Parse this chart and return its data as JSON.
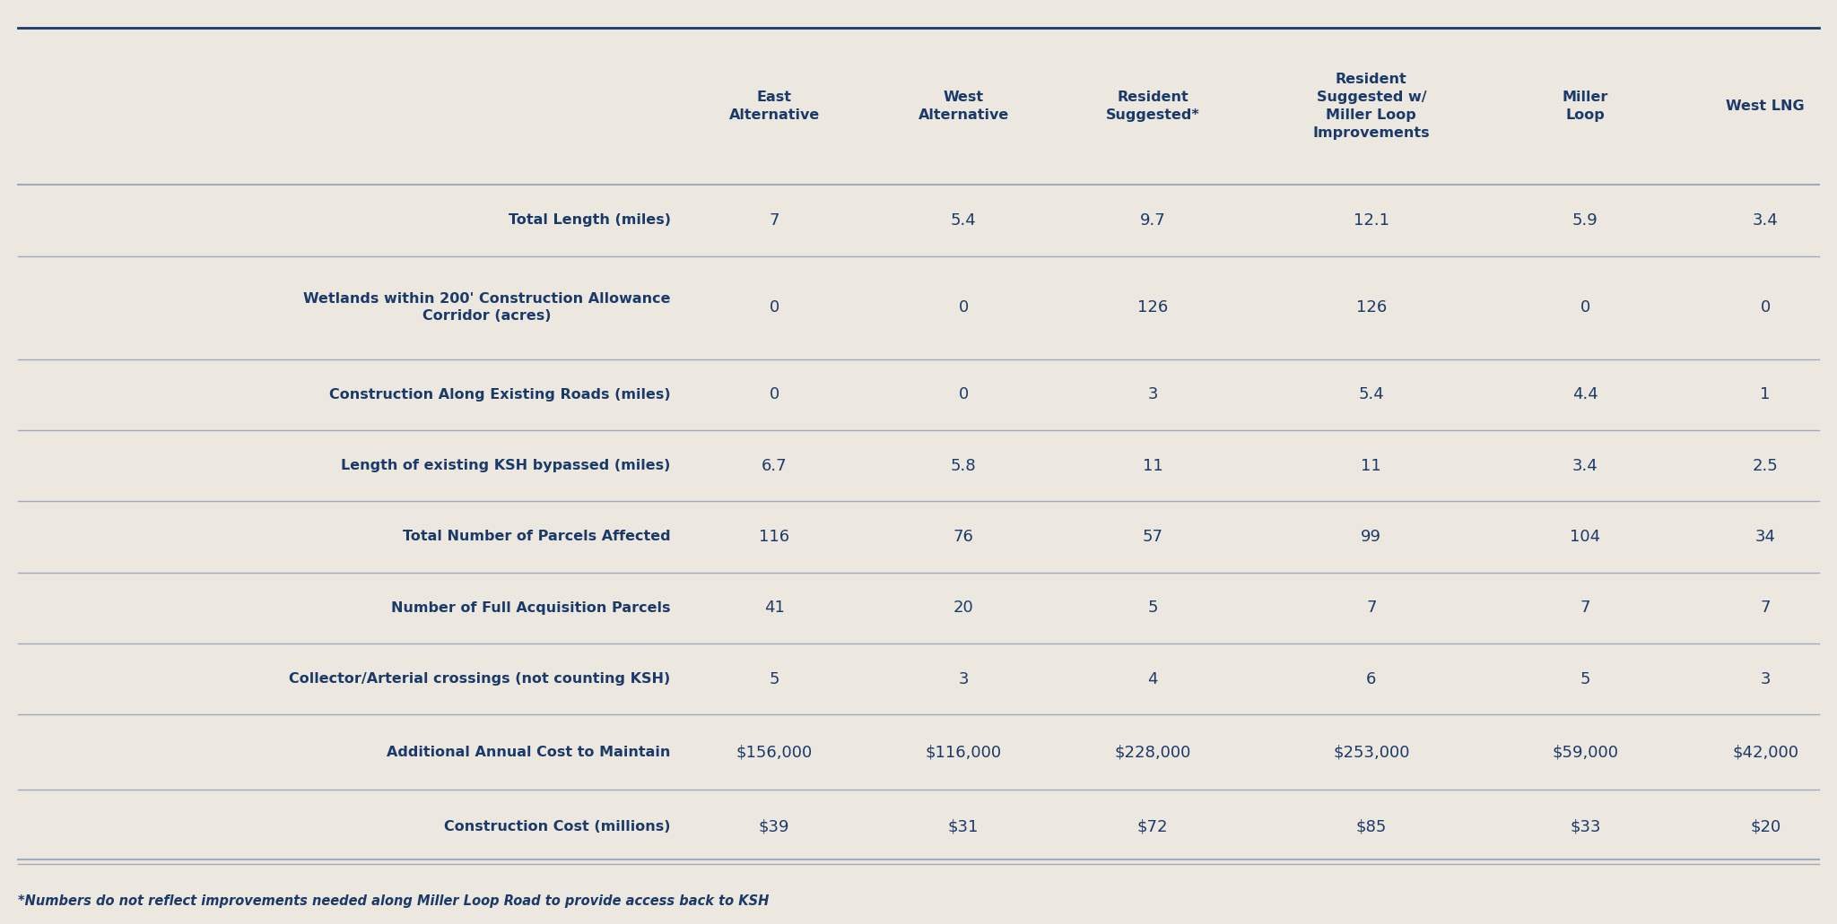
{
  "background_color": "#ede8df",
  "text_color": "#1a3a6b",
  "line_color": "#a0aabb",
  "columns": [
    "East\nAlternative",
    "West\nAlternative",
    "Resident\nSuggested*",
    "Resident\nSuggested w/\nMiller Loop\nImprovements",
    "Miller\nLoop",
    "West LNG"
  ],
  "rows": [
    {
      "label": "Total Length (miles)",
      "values": [
        "7",
        "5.4",
        "9.7",
        "12.1",
        "5.9",
        "3.4"
      ]
    },
    {
      "label": "Wetlands within 200' Construction Allowance\nCorridor (acres)",
      "values": [
        "0",
        "0",
        "126",
        "126",
        "0",
        "0"
      ]
    },
    {
      "label": "Construction Along Existing Roads (miles)",
      "values": [
        "0",
        "0",
        "3",
        "5.4",
        "4.4",
        "1"
      ]
    },
    {
      "label": "Length of existing KSH bypassed (miles)",
      "values": [
        "6.7",
        "5.8",
        "11",
        "11",
        "3.4",
        "2.5"
      ]
    },
    {
      "label": "Total Number of Parcels Affected",
      "values": [
        "116",
        "76",
        "57",
        "99",
        "104",
        "34"
      ]
    },
    {
      "label": "Number of Full Acquisition Parcels",
      "values": [
        "41",
        "20",
        "5",
        "7",
        "7",
        "7"
      ]
    },
    {
      "label": "Collector/Arterial crossings (not counting KSH)",
      "values": [
        "5",
        "3",
        "4",
        "6",
        "5",
        "3"
      ]
    },
    {
      "label": "Additional Annual Cost to Maintain",
      "values": [
        "$156,000",
        "$116,000",
        "$228,000",
        "$253,000",
        "$59,000",
        "$42,000"
      ]
    },
    {
      "label": "Construction Cost (millions)",
      "values": [
        "$39",
        "$31",
        "$72",
        "$85",
        "$33",
        "$20"
      ]
    }
  ],
  "footnote": "*Numbers do not reflect improvements needed along Miller Loop Road to provide access back to KSH",
  "col_header_fontsize": 11.5,
  "row_label_fontsize": 11.5,
  "cell_fontsize": 13,
  "footnote_fontsize": 10.5
}
